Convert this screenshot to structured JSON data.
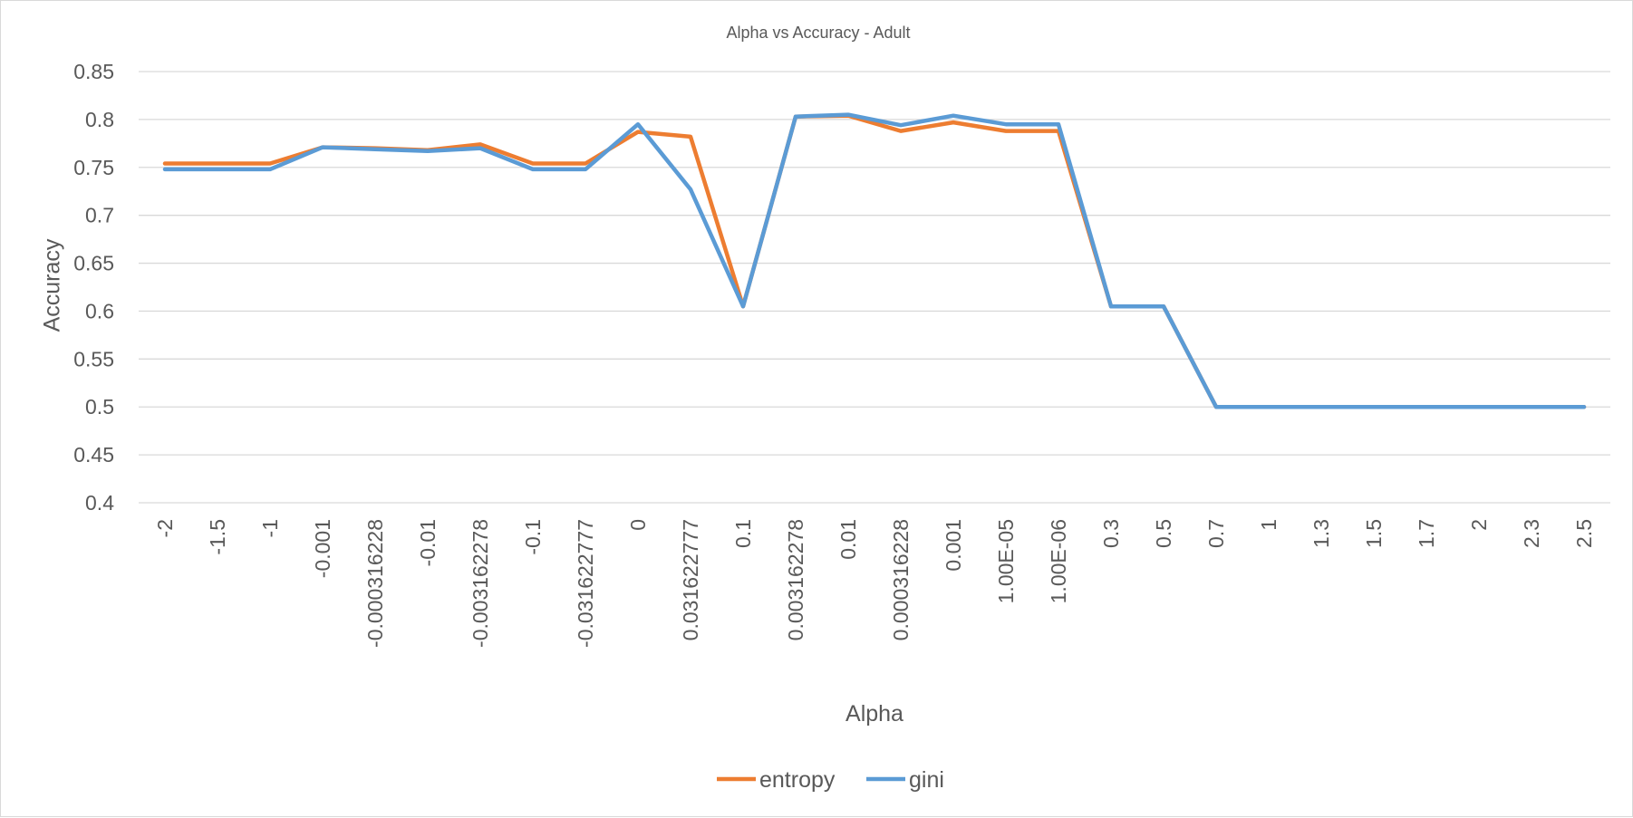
{
  "chart_data": {
    "type": "line",
    "title": "Alpha vs Accuracy - Adult",
    "xlabel": "Alpha",
    "ylabel": "Accuracy",
    "ylim": [
      0.4,
      0.85
    ],
    "yticks": [
      "0.4",
      "0.45",
      "0.5",
      "0.55",
      "0.6",
      "0.65",
      "0.7",
      "0.75",
      "0.8",
      "0.85"
    ],
    "grid": "horizontal",
    "legend_position": "bottom",
    "categories": [
      "-2",
      "-1.5",
      "-1",
      "-0.001",
      "-0.000316228",
      "-0.01",
      "-0.003162278",
      "-0.1",
      "-0.031622777",
      "0",
      "0.031622777",
      "0.1",
      "0.003162278",
      "0.01",
      "0.000316228",
      "0.001",
      "1.00E-05",
      "1.00E-06",
      "0.3",
      "0.5",
      "0.7",
      "1",
      "1.3",
      "1.5",
      "1.7",
      "2",
      "2.3",
      "2.5"
    ],
    "series": [
      {
        "name": "entropy",
        "color": "#ed7d31",
        "values": [
          0.754,
          0.754,
          0.754,
          0.771,
          0.77,
          0.768,
          0.774,
          0.754,
          0.754,
          0.787,
          0.782,
          0.605,
          0.803,
          0.804,
          0.788,
          0.797,
          0.788,
          0.788,
          0.605,
          0.605,
          0.5,
          0.5,
          0.5,
          0.5,
          0.5,
          0.5,
          0.5,
          0.5
        ]
      },
      {
        "name": "gini",
        "color": "#5b9bd5",
        "values": [
          0.748,
          0.748,
          0.748,
          0.771,
          0.769,
          0.767,
          0.77,
          0.748,
          0.748,
          0.795,
          0.727,
          0.605,
          0.803,
          0.805,
          0.794,
          0.804,
          0.795,
          0.795,
          0.605,
          0.605,
          0.5,
          0.5,
          0.5,
          0.5,
          0.5,
          0.5,
          0.5,
          0.5
        ]
      }
    ]
  }
}
